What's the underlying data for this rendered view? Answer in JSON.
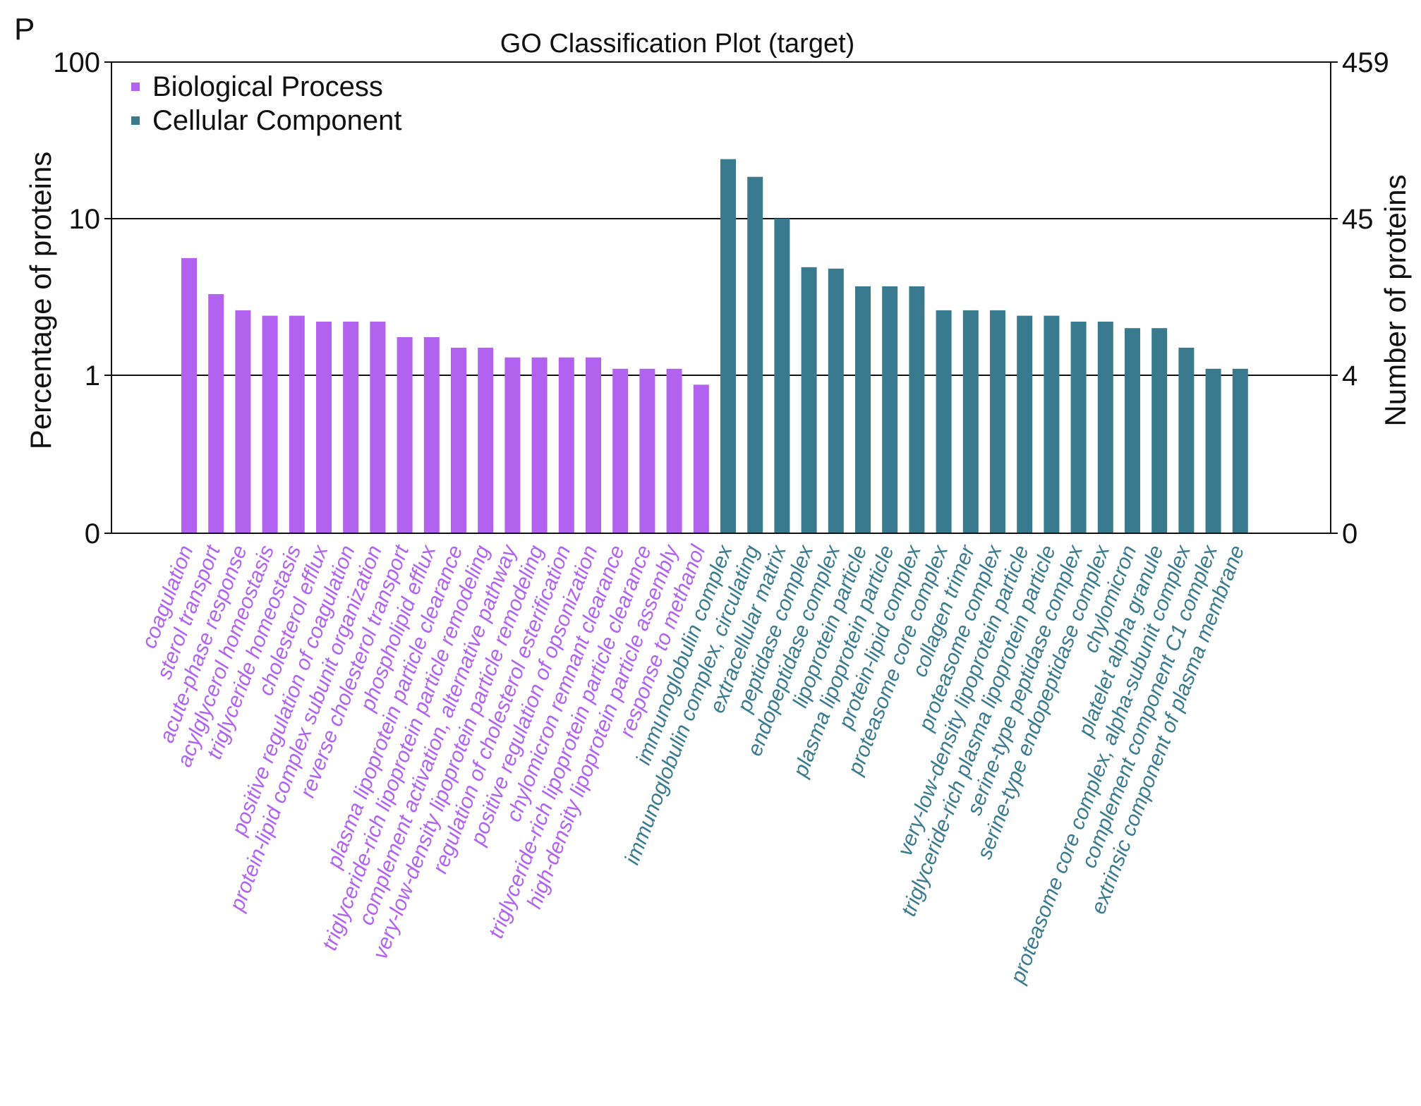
{
  "panel_label": "P",
  "chart_data": {
    "type": "bar",
    "title": "GO Classification Plot (target)",
    "ylabel": "Percentage of proteins",
    "ylabel_right": "Number of proteins",
    "yscale": "log",
    "y_ticks_left": [
      "100",
      "10",
      "1",
      "0"
    ],
    "y_ticks_right": [
      "459",
      "45",
      "4",
      "0"
    ],
    "grid": true,
    "legend_position": "top-left",
    "series": [
      {
        "name": "Biological Process",
        "color": "#b163f0",
        "categories": [
          "coagulation",
          "sterol transport",
          "acute-phase response",
          "acylglycerol homeostasis",
          "triglyceride homeostasis",
          "cholesterol efflux",
          "positive regulation of coagulation",
          "protein-lipid complex subunit organization",
          "reverse cholesterol transport",
          "phospholipid efflux",
          "plasma lipoprotein particle clearance",
          "triglyceride-rich lipoprotein particle remodeling",
          "complement activation, alternative pathway",
          "very-low-density lipoprotein particle remodeling",
          "regulation of cholesterol esterification",
          "positive regulation of opsonization",
          "chylomicron remnant clearance",
          "triglyceride-rich lipoprotein particle clearance",
          "high-density lipoprotein particle assembly",
          "response to methanol"
        ],
        "values": [
          5.6,
          3.3,
          2.6,
          2.4,
          2.4,
          2.2,
          2.2,
          2.2,
          1.75,
          1.75,
          1.5,
          1.5,
          1.3,
          1.3,
          1.3,
          1.3,
          1.1,
          1.1,
          1.1,
          0.87
        ]
      },
      {
        "name": "Cellular Component",
        "color": "#3a7a8f",
        "categories": [
          "immunoglobulin complex",
          "immunoglobulin complex, circulating",
          "extracellular matrix",
          "peptidase complex",
          "endopeptidase complex",
          "lipoprotein particle",
          "plasma lipoprotein particle",
          "protein-lipid complex",
          "proteasome core complex",
          "collagen trimer",
          "proteasome complex",
          "very-low-density lipoprotein particle",
          "triglyceride-rich plasma lipoprotein particle",
          "serine-type peptidase complex",
          "serine-type endopeptidase complex",
          "chylomicron",
          "platelet alpha granule",
          "proteasome core complex, alpha-subunit complex",
          "complement component C1 complex",
          "extrinsic component of plasma membrane"
        ],
        "values": [
          24.0,
          18.5,
          10.0,
          4.9,
          4.8,
          3.7,
          3.7,
          3.7,
          2.6,
          2.6,
          2.6,
          2.4,
          2.4,
          2.2,
          2.2,
          2.0,
          2.0,
          1.5,
          1.1,
          1.1
        ]
      }
    ]
  }
}
